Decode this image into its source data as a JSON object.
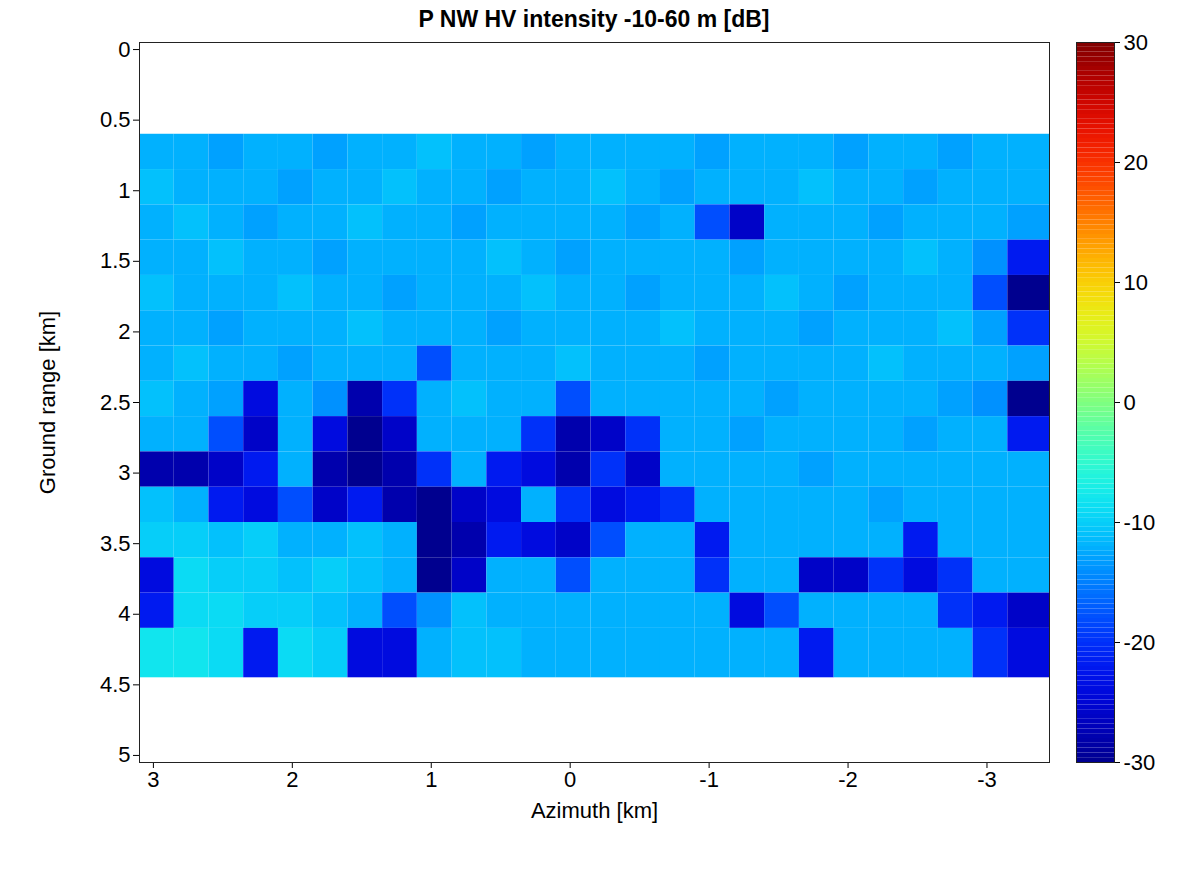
{
  "chart_data": {
    "type": "heatmap",
    "title": "P NW HV intensity -10-60 m [dB]",
    "xlabel": "Azimuth [km]",
    "ylabel": "Ground range [km]",
    "xlim": [
      3.1,
      -3.45
    ],
    "ylim": [
      -0.05,
      5.05
    ],
    "xticks": [
      3,
      2,
      1,
      0,
      -1,
      -2,
      -3
    ],
    "yticks": [
      0,
      0.5,
      1,
      1.5,
      2,
      2.5,
      3,
      3.5,
      4,
      4.5,
      5
    ],
    "x_edges": [
      3.1,
      2.85,
      2.6,
      2.35,
      2.1,
      1.85,
      1.6,
      1.35,
      1.1,
      0.85,
      0.6,
      0.35,
      0.1,
      -0.15,
      -0.4,
      -0.65,
      -0.9,
      -1.15,
      -1.4,
      -1.65,
      -1.9,
      -2.15,
      -2.4,
      -2.65,
      -2.9,
      -3.15,
      -3.45
    ],
    "y_edges": [
      0.6,
      0.85,
      1.1,
      1.35,
      1.6,
      1.85,
      2.1,
      2.35,
      2.6,
      2.85,
      3.1,
      3.35,
      3.6,
      3.85,
      4.1,
      4.45
    ],
    "values": [
      [
        -12,
        -12,
        -13,
        -12,
        -12,
        -13,
        -12,
        -12,
        -11,
        -12,
        -12,
        -13,
        -12,
        -12,
        -12,
        -12,
        -13,
        -12,
        -12,
        -12,
        -13,
        -12,
        -12,
        -13,
        -12,
        -12
      ],
      [
        -11,
        -12,
        -12,
        -12,
        -13,
        -12,
        -12,
        -11,
        -12,
        -12,
        -13,
        -12,
        -12,
        -11,
        -12,
        -13,
        -12,
        -12,
        -12,
        -11,
        -12,
        -12,
        -13,
        -12,
        -12,
        -12
      ],
      [
        -12,
        -11,
        -12,
        -13,
        -12,
        -12,
        -11,
        -12,
        -12,
        -13,
        -12,
        -12,
        -12,
        -12,
        -13,
        -12,
        -18,
        -26,
        -12,
        -12,
        -12,
        -13,
        -12,
        -12,
        -12,
        -13
      ],
      [
        -12,
        -12,
        -11,
        -12,
        -12,
        -13,
        -12,
        -12,
        -12,
        -12,
        -11,
        -12,
        -13,
        -12,
        -12,
        -12,
        -12,
        -13,
        -12,
        -12,
        -12,
        -12,
        -11,
        -12,
        -14,
        -22
      ],
      [
        -11,
        -12,
        -12,
        -12,
        -11,
        -12,
        -12,
        -13,
        -12,
        -12,
        -12,
        -11,
        -12,
        -12,
        -13,
        -12,
        -12,
        -12,
        -11,
        -12,
        -13,
        -12,
        -12,
        -12,
        -18,
        -30
      ],
      [
        -12,
        -12,
        -13,
        -12,
        -12,
        -12,
        -11,
        -12,
        -12,
        -12,
        -13,
        -12,
        -12,
        -12,
        -12,
        -11,
        -12,
        -12,
        -12,
        -13,
        -12,
        -12,
        -12,
        -11,
        -13,
        -20
      ],
      [
        -12,
        -11,
        -12,
        -12,
        -13,
        -12,
        -12,
        -12,
        -18,
        -12,
        -12,
        -12,
        -11,
        -12,
        -12,
        -12,
        -13,
        -12,
        -12,
        -12,
        -12,
        -11,
        -12,
        -12,
        -12,
        -13
      ],
      [
        -11,
        -12,
        -13,
        -24,
        -12,
        -14,
        -28,
        -20,
        -12,
        -11,
        -12,
        -12,
        -18,
        -12,
        -12,
        -12,
        -12,
        -12,
        -13,
        -12,
        -12,
        -12,
        -12,
        -13,
        -14,
        -30
      ],
      [
        -12,
        -12,
        -18,
        -26,
        -12,
        -24,
        -30,
        -26,
        -12,
        -12,
        -12,
        -20,
        -28,
        -26,
        -20,
        -12,
        -12,
        -13,
        -12,
        -12,
        -12,
        -12,
        -13,
        -12,
        -12,
        -22
      ],
      [
        -28,
        -28,
        -26,
        -22,
        -12,
        -28,
        -30,
        -28,
        -20,
        -12,
        -22,
        -24,
        -28,
        -20,
        -26,
        -12,
        -12,
        -12,
        -12,
        -13,
        -12,
        -12,
        -12,
        -12,
        -12,
        -12
      ],
      [
        -11,
        -12,
        -22,
        -24,
        -18,
        -26,
        -22,
        -28,
        -30,
        -26,
        -24,
        -12,
        -20,
        -24,
        -22,
        -20,
        -12,
        -12,
        -12,
        -12,
        -12,
        -13,
        -12,
        -12,
        -12,
        -12
      ],
      [
        -10,
        -10,
        -11,
        -10,
        -12,
        -12,
        -11,
        -12,
        -30,
        -28,
        -22,
        -24,
        -26,
        -18,
        -12,
        -12,
        -22,
        -12,
        -12,
        -12,
        -12,
        -12,
        -22,
        -12,
        -12,
        -12
      ],
      [
        -24,
        -9,
        -10,
        -10,
        -11,
        -10,
        -11,
        -12,
        -30,
        -26,
        -12,
        -12,
        -18,
        -12,
        -12,
        -12,
        -20,
        -12,
        -12,
        -26,
        -26,
        -20,
        -24,
        -20,
        -12,
        -12
      ],
      [
        -22,
        -9,
        -9,
        -10,
        -10,
        -11,
        -12,
        -18,
        -14,
        -11,
        -12,
        -12,
        -12,
        -12,
        -12,
        -12,
        -12,
        -24,
        -18,
        -12,
        -12,
        -12,
        -12,
        -20,
        -22,
        -26
      ],
      [
        -8,
        -8,
        -9,
        -22,
        -9,
        -10,
        -24,
        -24,
        -12,
        -11,
        -11,
        -12,
        -12,
        -12,
        -12,
        -12,
        -12,
        -12,
        -12,
        -22,
        -12,
        -12,
        -12,
        -12,
        -20,
        -24
      ]
    ],
    "colorbar": {
      "range": [
        -30,
        30
      ],
      "ticks": [
        -30,
        -20,
        -10,
        0,
        10,
        20,
        30
      ]
    }
  }
}
